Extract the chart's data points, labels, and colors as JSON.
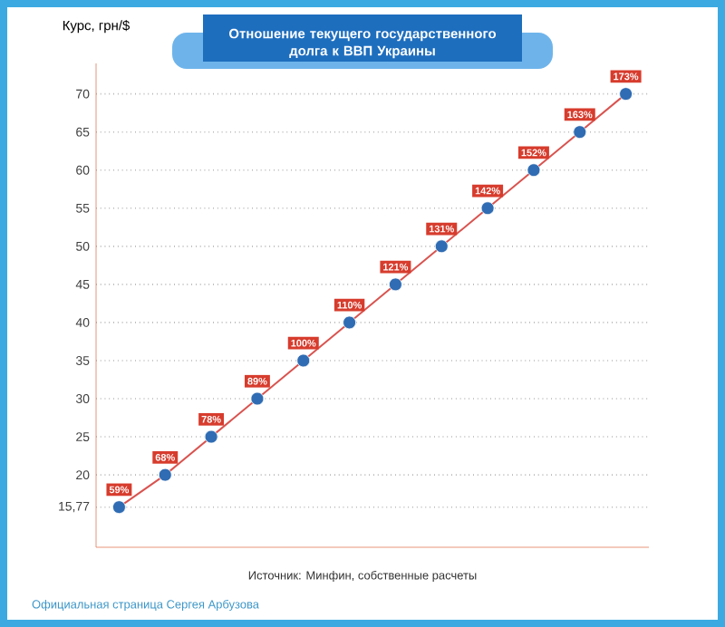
{
  "chart_data": {
    "type": "line",
    "title": "Отношение текущего государственного долга к ВВП Украины",
    "ylabel": "Курс, грн/$",
    "categories": [
      null,
      null,
      null,
      null,
      null,
      null,
      null,
      null,
      null,
      null,
      null,
      null
    ],
    "ylim": [
      10.5,
      74
    ],
    "yticks": [
      {
        "value": 15.77,
        "label": "15,77"
      },
      20,
      25,
      30,
      35,
      40,
      45,
      50,
      55,
      60,
      65,
      70
    ],
    "grid": "y",
    "line_style": "solid",
    "series": [
      {
        "color": "#d9534f",
        "values": [
          15.77,
          20,
          25,
          30,
          35,
          40,
          45,
          50,
          55,
          60,
          65,
          70
        ]
      },
      {
        "type": "scatter",
        "color": "#2f6cb3",
        "values": [
          15.77,
          20,
          25,
          30,
          35,
          40,
          45,
          50,
          55,
          60,
          65,
          70
        ]
      }
    ],
    "annotations": [
      "Источник: Минфин, собственные расчеты",
      "Официальная страница Сергея Арбузова",
      {
        "text": "59%",
        "y": 15.77
      },
      {
        "text": "68%",
        "y": 20
      },
      {
        "text": "78%",
        "y": 25
      },
      {
        "text": "89%",
        "y": 30
      },
      {
        "text": "100%",
        "y": 35
      },
      {
        "text": "110%",
        "y": 40
      },
      {
        "text": "121%",
        "y": 45
      },
      {
        "text": "131%",
        "y": 50
      },
      {
        "text": "142%",
        "y": 55
      },
      {
        "text": "152%",
        "y": 60
      },
      {
        "text": "163%",
        "y": 65
      },
      {
        "text": "173%",
        "y": 70
      }
    ]
  }
}
